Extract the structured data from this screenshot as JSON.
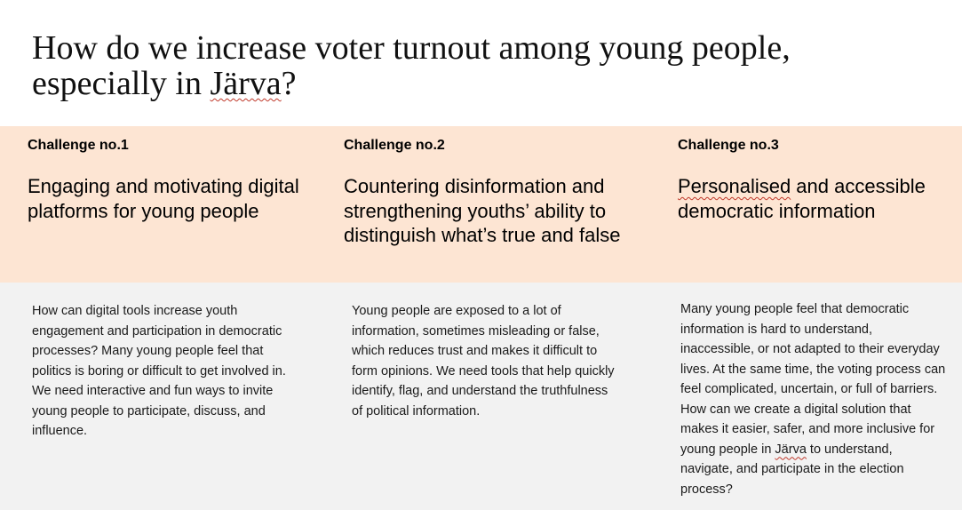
{
  "title": {
    "part1": "How do we increase voter turnout among young people, especially in ",
    "part2": "Järva",
    "part3": "?"
  },
  "challenges": [
    {
      "label": "Challenge no.1",
      "title": "Engaging and motivating digital platforms for young people",
      "description": "How can digital tools increase youth engagement and participation in democratic processes? Many young people feel that politics is boring or difficult to get involved in. We need interactive and fun ways to invite young people to participate, discuss, and influence."
    },
    {
      "label": "Challenge no.2",
      "title": "Countering disinformation and strengthening youths’ ability to distinguish what’s true and false",
      "description": "Young people are exposed to a lot of information, sometimes misleading or false, which reduces trust and makes it difficult to form opinions. We need tools that help quickly identify, flag, and understand the truthfulness of political information."
    },
    {
      "label": "Challenge no.3",
      "title_part1": "Personalised",
      "title_part2": " and accessible democratic information",
      "description_part1": "Many young people feel that democratic information is hard to understand, inaccessible, or not adapted to their everyday lives. At the same time, the voting process can feel complicated, uncertain, or full of barriers. How can we create a digital solution that makes it easier, safer, and more inclusive for young people in ",
      "description_part2": "Järva",
      "description_part3": " to understand, navigate, and participate in the election process?"
    }
  ],
  "colors": {
    "band": "#fde5d3",
    "lower": "#f2f2f2"
  }
}
